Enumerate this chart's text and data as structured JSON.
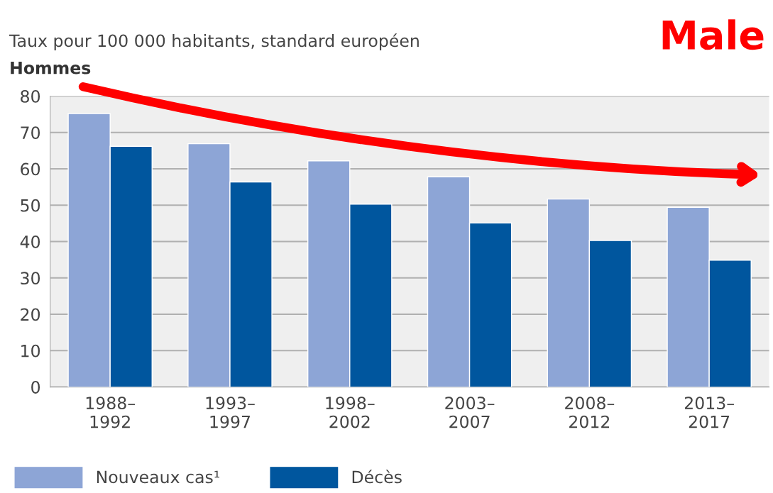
{
  "chart_data": {
    "type": "bar",
    "title": "Taux pour 100 000 habitants, standard européen",
    "subtitle": "Hommes",
    "categories": [
      "1988–\n1992",
      "1993–\n1997",
      "1998–\n2002",
      "2003–\n2007",
      "2008–\n2012",
      "2013–\n2017"
    ],
    "series": [
      {
        "name": "Nouveaux cas¹",
        "color": "#8da5d6",
        "values": [
          75.2,
          66.9,
          62.2,
          57.8,
          51.7,
          49.4
        ]
      },
      {
        "name": "Décès",
        "color": "#00569e",
        "values": [
          66.2,
          56.4,
          50.3,
          45.1,
          40.3,
          34.9
        ]
      }
    ],
    "ylim": [
      0,
      80
    ],
    "yticks": [
      0,
      10,
      20,
      30,
      40,
      50,
      60,
      70,
      80
    ],
    "grid": "y",
    "legend": "bottom",
    "annotations": [
      "Male"
    ]
  }
}
